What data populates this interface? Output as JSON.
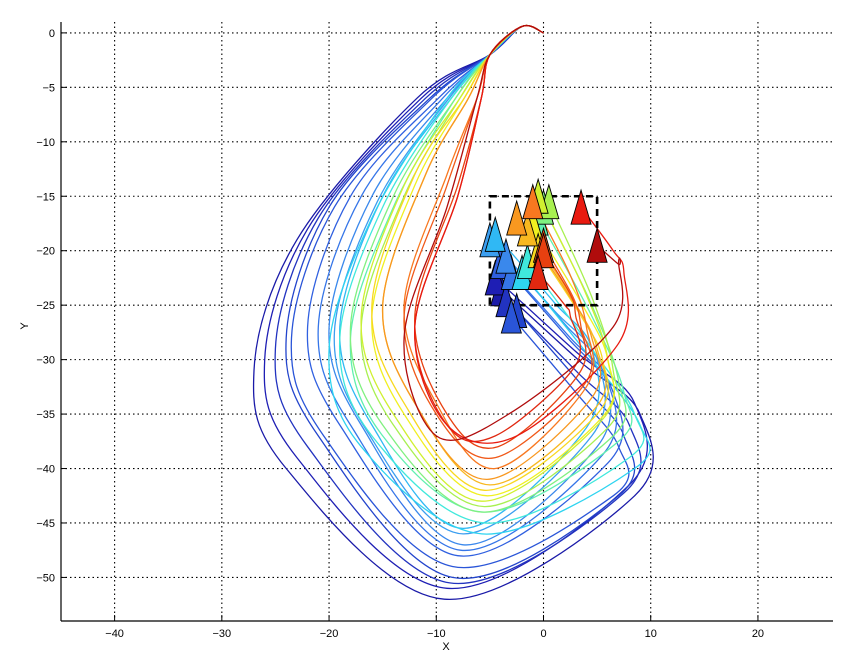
{
  "chart_data": {
    "type": "line",
    "title": "",
    "xlabel": "X",
    "ylabel": "Y",
    "xlim": [
      -45,
      27
    ],
    "ylim": [
      -54,
      1
    ],
    "xticks": [
      -40,
      -30,
      -20,
      -10,
      0,
      10,
      20
    ],
    "yticks": [
      0,
      -5,
      -10,
      -15,
      -20,
      -25,
      -30,
      -35,
      -40,
      -45,
      -50
    ],
    "grid": true,
    "grid_style": "dotted",
    "origin": [
      0,
      0
    ],
    "target_box": {
      "x": [
        -5,
        5
      ],
      "y": [
        -25,
        -15
      ],
      "style": "dashed"
    },
    "colormap": "jet",
    "series": [
      {
        "color": "#1a1aa8",
        "end": [
          -4,
          -23.5
        ],
        "w": [
          -27,
          -31,
          8.5,
          -52,
          9,
          -35
        ]
      },
      {
        "color": "#1e1eb4",
        "end": [
          -4.5,
          -22.5
        ],
        "w": [
          -26,
          -30,
          8,
          -51,
          8.5,
          -34
        ]
      },
      {
        "color": "#2233c0",
        "end": [
          -3.5,
          -24.5
        ],
        "w": [
          -25,
          -29,
          7.5,
          -50.5,
          8,
          -36
        ]
      },
      {
        "color": "#2244cc",
        "end": [
          -2.5,
          -25.5
        ],
        "w": [
          -24,
          -28,
          7,
          -50,
          7.5,
          -37
        ]
      },
      {
        "color": "#2a55d8",
        "end": [
          -3,
          -26
        ],
        "w": [
          -23.5,
          -28,
          6.5,
          -49,
          7,
          -38
        ]
      },
      {
        "color": "#3060e0",
        "end": [
          -4,
          -21
        ],
        "w": [
          -22,
          -27,
          6,
          -48,
          6.5,
          -33
        ]
      },
      {
        "color": "#3575e8",
        "end": [
          -3,
          -22
        ],
        "w": [
          -21,
          -27,
          5.5,
          -47.5,
          6,
          -32
        ]
      },
      {
        "color": "#3a88ec",
        "end": [
          -3.5,
          -20.5
        ],
        "w": [
          -20,
          -27,
          5,
          -47,
          5.5,
          -31
        ]
      },
      {
        "color": "#3b9ef0",
        "end": [
          -5,
          -19
        ],
        "w": [
          -19.5,
          -27.5,
          4.5,
          -46,
          5,
          -30
        ]
      },
      {
        "color": "#30b8f4",
        "end": [
          -4.5,
          -18.5
        ],
        "w": [
          -19,
          -27,
          4,
          -45.5,
          4.5,
          -29
        ]
      },
      {
        "color": "#2ed4f0",
        "end": [
          -2,
          -22
        ],
        "w": [
          -20,
          -29,
          8.5,
          -46,
          9,
          -36
        ]
      },
      {
        "color": "#40e8dc",
        "end": [
          -1.5,
          -21
        ],
        "w": [
          -19,
          -28,
          8,
          -45,
          8.5,
          -35
        ]
      },
      {
        "color": "#60f0b0",
        "end": [
          -0.5,
          -17
        ],
        "w": [
          -18,
          -28,
          7,
          -44,
          7.5,
          -33
        ]
      },
      {
        "color": "#80f080",
        "end": [
          0,
          -16
        ],
        "w": [
          -18,
          -27,
          6.5,
          -44,
          7,
          -32
        ]
      },
      {
        "color": "#a8f050",
        "end": [
          0.5,
          -15.5
        ],
        "w": [
          -17,
          -27,
          6,
          -43.5,
          6.5,
          -31
        ]
      },
      {
        "color": "#d0f030",
        "end": [
          -0.5,
          -15
        ],
        "w": [
          -17,
          -26,
          5.5,
          -43,
          6,
          -30
        ]
      },
      {
        "color": "#f0f020",
        "end": [
          -1,
          -17.5
        ],
        "w": [
          -16,
          -26,
          5.5,
          -42.5,
          6,
          -30
        ]
      },
      {
        "color": "#f8d820",
        "end": [
          -0.5,
          -20
        ],
        "w": [
          -16,
          -25,
          5,
          -42,
          5.5,
          -30
        ]
      },
      {
        "color": "#f8b820",
        "end": [
          -1.5,
          -18
        ],
        "w": [
          -15,
          -25,
          5,
          -41.5,
          5,
          -29
        ]
      },
      {
        "color": "#f89820",
        "end": [
          -2.5,
          -17
        ],
        "w": [
          -15,
          -25,
          4.5,
          -41,
          4.5,
          -28
        ]
      },
      {
        "color": "#f87820",
        "end": [
          -1,
          -15.5
        ],
        "w": [
          -13,
          -25,
          4,
          -40,
          4,
          -27
        ]
      },
      {
        "color": "#f05818",
        "end": [
          0,
          -19.5
        ],
        "w": [
          -13,
          -26,
          4,
          -39,
          3.5,
          -27
        ]
      },
      {
        "color": "#e84010",
        "end": [
          0,
          -20
        ],
        "w": [
          -12,
          -26,
          3.5,
          -38,
          3,
          -26
        ]
      },
      {
        "color": "#e02810",
        "end": [
          -0.5,
          -22
        ],
        "w": [
          -12,
          -27,
          3,
          -37,
          2.5,
          -26
        ]
      },
      {
        "color": "#e81a10",
        "end": [
          3.5,
          -16
        ],
        "w": [
          -12,
          -27,
          7,
          -37,
          7.5,
          -22
        ]
      },
      {
        "color": "#b00c0c",
        "end": [
          5,
          -19.5
        ],
        "w": [
          -13,
          -28,
          6.5,
          -35,
          7,
          -21
        ]
      }
    ]
  }
}
